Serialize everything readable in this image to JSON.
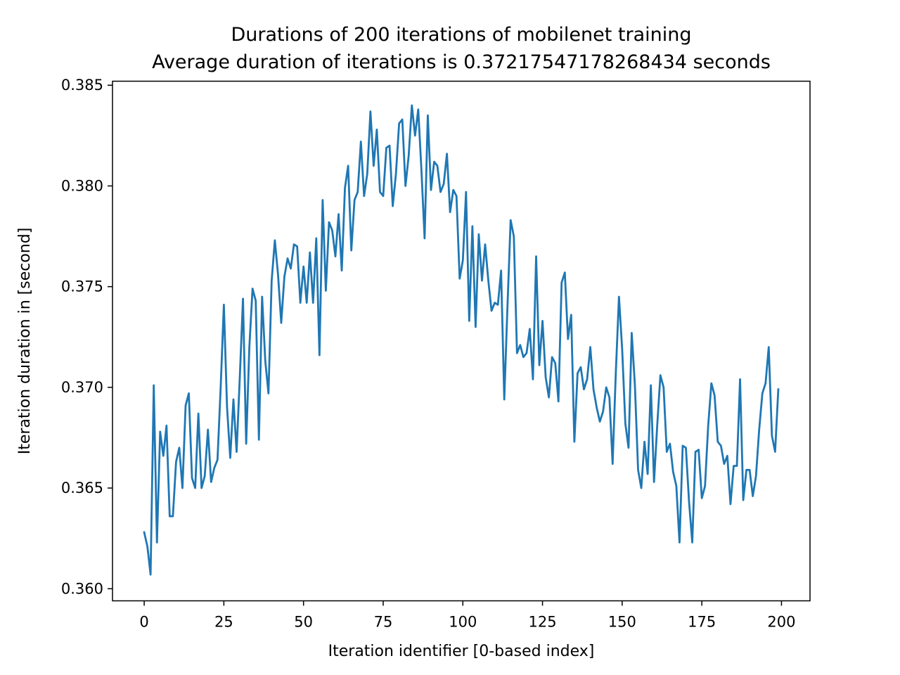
{
  "chart_data": {
    "type": "line",
    "title": "Durations of 200 iterations of mobilenet training",
    "subtitle": "Average duration of iterations is 0.37217547178268434 seconds",
    "xlabel": "Iteration identifier [0-based index]",
    "ylabel": "Iteration duration in [second]",
    "xlim": [
      -9.95,
      208.95
    ],
    "ylim": [
      0.3594,
      0.3852
    ],
    "xticks": [
      0,
      25,
      50,
      75,
      100,
      125,
      150,
      175,
      200
    ],
    "xtick_labels": [
      "0",
      "25",
      "50",
      "75",
      "100",
      "125",
      "150",
      "175",
      "200"
    ],
    "yticks": [
      0.36,
      0.365,
      0.37,
      0.375,
      0.38,
      0.385
    ],
    "ytick_labels": [
      "0.360",
      "0.365",
      "0.370",
      "0.375",
      "0.380",
      "0.385"
    ],
    "grid": false,
    "legend": "none",
    "series": [
      {
        "color": "#1f77b4",
        "x": [
          0,
          1,
          2,
          3,
          4,
          5,
          6,
          7,
          8,
          9,
          10,
          11,
          12,
          13,
          14,
          15,
          16,
          17,
          18,
          19,
          20,
          21,
          22,
          23,
          24,
          25,
          26,
          27,
          28,
          29,
          30,
          31,
          32,
          33,
          34,
          35,
          36,
          37,
          38,
          39,
          40,
          41,
          42,
          43,
          44,
          45,
          46,
          47,
          48,
          49,
          50,
          51,
          52,
          53,
          54,
          55,
          56,
          57,
          58,
          59,
          60,
          61,
          62,
          63,
          64,
          65,
          66,
          67,
          68,
          69,
          70,
          71,
          72,
          73,
          74,
          75,
          76,
          77,
          78,
          79,
          80,
          81,
          82,
          83,
          84,
          85,
          86,
          87,
          88,
          89,
          90,
          91,
          92,
          93,
          94,
          95,
          96,
          97,
          98,
          99,
          100,
          101,
          102,
          103,
          104,
          105,
          106,
          107,
          108,
          109,
          110,
          111,
          112,
          113,
          114,
          115,
          116,
          117,
          118,
          119,
          120,
          121,
          122,
          123,
          124,
          125,
          126,
          127,
          128,
          129,
          130,
          131,
          132,
          133,
          134,
          135,
          136,
          137,
          138,
          139,
          140,
          141,
          142,
          143,
          144,
          145,
          146,
          147,
          148,
          149,
          150,
          151,
          152,
          153,
          154,
          155,
          156,
          157,
          158,
          159,
          160,
          161,
          162,
          163,
          164,
          165,
          166,
          167,
          168,
          169,
          170,
          171,
          172,
          173,
          174,
          175,
          176,
          177,
          178,
          179,
          180,
          181,
          182,
          183,
          184,
          185,
          186,
          187,
          188,
          189,
          190,
          191,
          192,
          193,
          194,
          195,
          196,
          197,
          198,
          199
        ],
        "values": [
          0.3628,
          0.3621,
          0.3607,
          0.3701,
          0.3623,
          0.3678,
          0.3666,
          0.3681,
          0.3636,
          0.3636,
          0.3663,
          0.367,
          0.365,
          0.3691,
          0.3697,
          0.3655,
          0.365,
          0.3687,
          0.365,
          0.3656,
          0.3679,
          0.3653,
          0.366,
          0.3664,
          0.37,
          0.3741,
          0.369,
          0.3665,
          0.3694,
          0.3668,
          0.3705,
          0.3744,
          0.3672,
          0.372,
          0.3749,
          0.3743,
          0.3674,
          0.3745,
          0.3713,
          0.3697,
          0.3753,
          0.3773,
          0.3756,
          0.3732,
          0.3755,
          0.3764,
          0.3759,
          0.3771,
          0.377,
          0.3742,
          0.376,
          0.3742,
          0.3767,
          0.3742,
          0.3774,
          0.3716,
          0.3793,
          0.3748,
          0.3782,
          0.3778,
          0.3765,
          0.3786,
          0.3758,
          0.3799,
          0.381,
          0.3768,
          0.3793,
          0.3797,
          0.3822,
          0.3795,
          0.3806,
          0.3837,
          0.381,
          0.3828,
          0.3797,
          0.3795,
          0.3819,
          0.382,
          0.379,
          0.3806,
          0.3831,
          0.3833,
          0.38,
          0.3815,
          0.384,
          0.3825,
          0.3838,
          0.3808,
          0.3774,
          0.3835,
          0.3798,
          0.3812,
          0.381,
          0.3797,
          0.3801,
          0.3816,
          0.3787,
          0.3798,
          0.3795,
          0.3754,
          0.3763,
          0.3797,
          0.3733,
          0.378,
          0.373,
          0.3776,
          0.3753,
          0.3771,
          0.3753,
          0.3738,
          0.3742,
          0.3741,
          0.3758,
          0.3694,
          0.374,
          0.3783,
          0.3775,
          0.3717,
          0.3721,
          0.3715,
          0.3717,
          0.3729,
          0.3704,
          0.3765,
          0.3711,
          0.3733,
          0.3705,
          0.3695,
          0.3715,
          0.3712,
          0.3693,
          0.3752,
          0.3757,
          0.3724,
          0.3736,
          0.3673,
          0.3707,
          0.371,
          0.3699,
          0.3704,
          0.372,
          0.3699,
          0.369,
          0.3683,
          0.3688,
          0.37,
          0.3695,
          0.3662,
          0.3707,
          0.3745,
          0.3719,
          0.3682,
          0.367,
          0.3727,
          0.3701,
          0.3659,
          0.365,
          0.3673,
          0.3657,
          0.3701,
          0.3653,
          0.3681,
          0.3706,
          0.37,
          0.3668,
          0.3672,
          0.3658,
          0.3651,
          0.3623,
          0.3671,
          0.367,
          0.3643,
          0.3623,
          0.3668,
          0.3669,
          0.3645,
          0.3651,
          0.3681,
          0.3702,
          0.3696,
          0.3673,
          0.3671,
          0.3662,
          0.3666,
          0.3642,
          0.3661,
          0.3661,
          0.3704,
          0.3644,
          0.3659,
          0.3659,
          0.3646,
          0.3656,
          0.3679,
          0.3697,
          0.3702,
          0.372,
          0.3676,
          0.3668,
          0.3699
        ]
      }
    ]
  }
}
